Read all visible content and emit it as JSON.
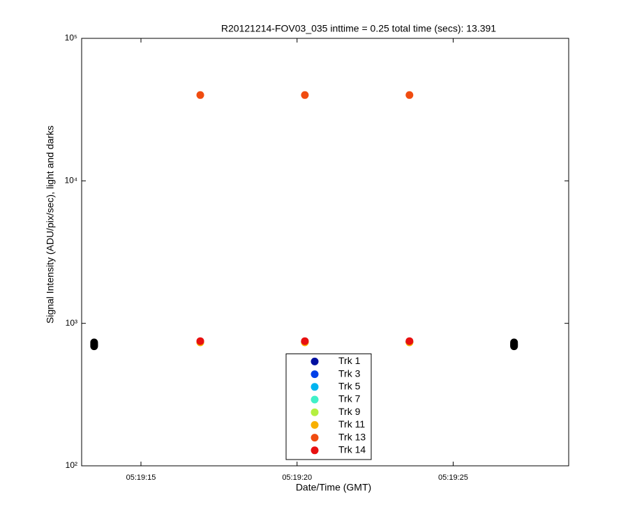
{
  "chart_data": {
    "type": "scatter",
    "title": "R20121214-FOV03_035 inttime = 0.25 total time (secs): 13.391",
    "x_label": "Date/Time (GMT)",
    "y_label": "Signal Intensity (ADU/pix/sec), light and darks",
    "y_scale": "log",
    "xlim": [
      13.1,
      28.7
    ],
    "xticks": [
      {
        "value": 15,
        "label": "05:19:15"
      },
      {
        "value": 20,
        "label": "05:19:20"
      },
      {
        "value": 25,
        "label": "05:19:25"
      }
    ],
    "ylim": [
      100,
      100000
    ],
    "yticks": [
      {
        "value": 100,
        "label": "10²"
      },
      {
        "value": 1000,
        "label": "10³"
      },
      {
        "value": 10000,
        "label": "10⁴"
      },
      {
        "value": 100000,
        "label": "10⁵"
      }
    ],
    "legend": "lower center",
    "series": [
      {
        "color": "#000000",
        "x": [
          13.5,
          13.5,
          13.5,
          13.5,
          13.5,
          26.95,
          26.95,
          26.95,
          26.95,
          26.95
        ],
        "values": [
          690,
          700,
          710,
          720,
          735,
          690,
          700,
          710,
          720,
          735
        ]
      },
      {
        "name": "Trk 1",
        "color": "#0010a0",
        "x": [
          16.9,
          20.25,
          23.6
        ],
        "values": [
          740,
          740,
          740
        ]
      },
      {
        "name": "Trk 3",
        "color": "#0040e8",
        "x": [
          16.9,
          20.25,
          23.6
        ],
        "values": [
          740,
          740,
          740
        ]
      },
      {
        "name": "Trk 5",
        "color": "#00b4f0",
        "x": [
          16.9,
          20.25,
          23.6
        ],
        "values": [
          740,
          740,
          740
        ]
      },
      {
        "name": "Trk 7",
        "color": "#40f0c8",
        "x": [
          16.9,
          20.25,
          23.6
        ],
        "values": [
          740,
          740,
          740
        ]
      },
      {
        "name": "Trk 9",
        "color": "#b4f040",
        "x": [
          16.9,
          20.25,
          23.6
        ],
        "values": [
          740,
          740,
          740
        ]
      },
      {
        "name": "Trk 11",
        "color": "#f8b000",
        "x": [
          16.9,
          20.25,
          23.6
        ],
        "values": [
          735,
          735,
          735
        ]
      },
      {
        "name": "Trk 13",
        "color": "#f04c10",
        "x": [
          16.9,
          20.25,
          23.6
        ],
        "values": [
          40000,
          40000,
          40000
        ]
      },
      {
        "name": "Trk 14",
        "color": "#e81010",
        "x": [
          16.9,
          20.25,
          23.6
        ],
        "values": [
          750,
          750,
          750
        ]
      }
    ]
  }
}
